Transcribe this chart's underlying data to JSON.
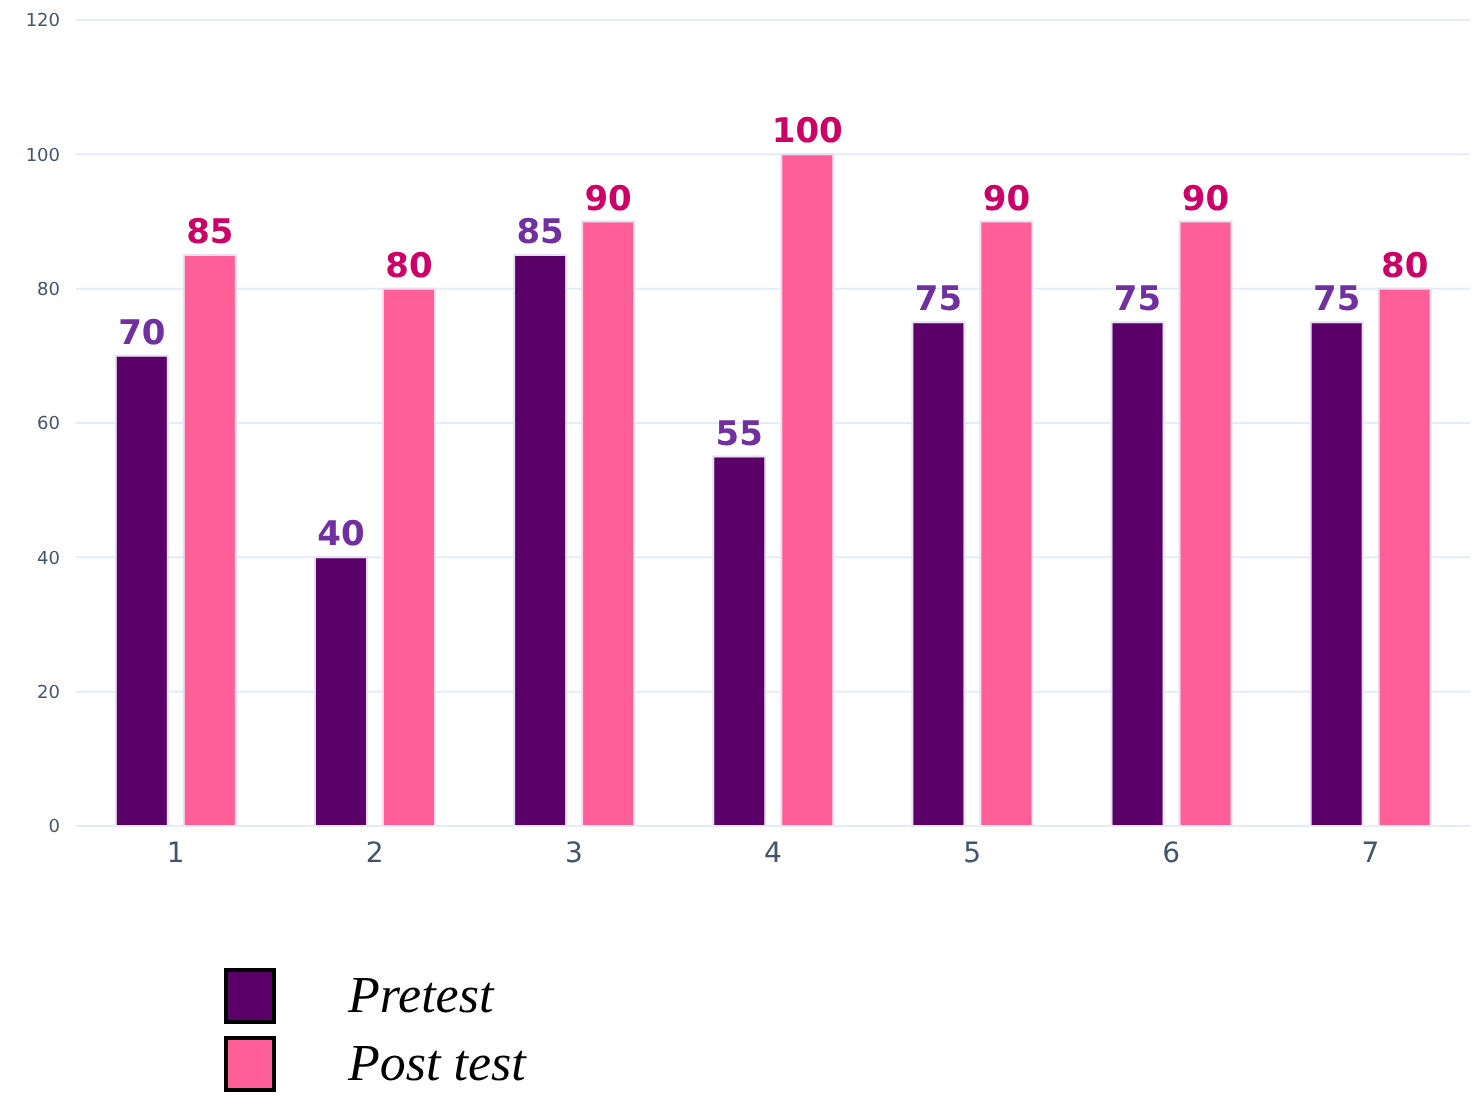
{
  "chart_data": {
    "type": "bar",
    "categories": [
      "1",
      "2",
      "3",
      "4",
      "5",
      "6",
      "7"
    ],
    "series": [
      {
        "name": "Pretest",
        "color": "#5b0068",
        "values": [
          70,
          40,
          85,
          55,
          75,
          75,
          75
        ]
      },
      {
        "name": "Post test",
        "color": "#ff5f96",
        "values": [
          85,
          80,
          90,
          100,
          90,
          90,
          80
        ]
      }
    ],
    "ylim": [
      0,
      120
    ],
    "yticks": [
      0,
      20,
      40,
      60,
      80,
      100,
      120
    ],
    "grid": "y",
    "legend": "bottom left",
    "data_labels": true
  }
}
